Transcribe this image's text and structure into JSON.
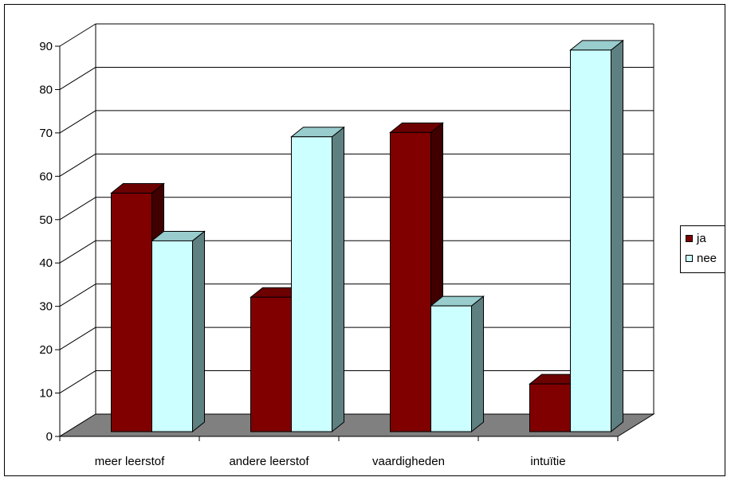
{
  "chart_data": {
    "type": "bar",
    "categories": [
      "meer leerstof",
      "andere leerstof",
      "vaardigheden",
      "intuïtie"
    ],
    "series": [
      {
        "name": "ja",
        "values": [
          55,
          31,
          69,
          11
        ],
        "color": "#800000"
      },
      {
        "name": "nee",
        "values": [
          44,
          68,
          29,
          88
        ],
        "color": "#ccffff"
      }
    ],
    "yticks": [
      0,
      10,
      20,
      30,
      40,
      50,
      60,
      70,
      80,
      90
    ],
    "ylim": [
      0,
      90
    ],
    "grid": true,
    "legend_position": "right",
    "style": "3d-clustered-column",
    "colors": {
      "floor": "#808080",
      "nee_side": "#5f8080",
      "ja_side": "#400000"
    }
  }
}
